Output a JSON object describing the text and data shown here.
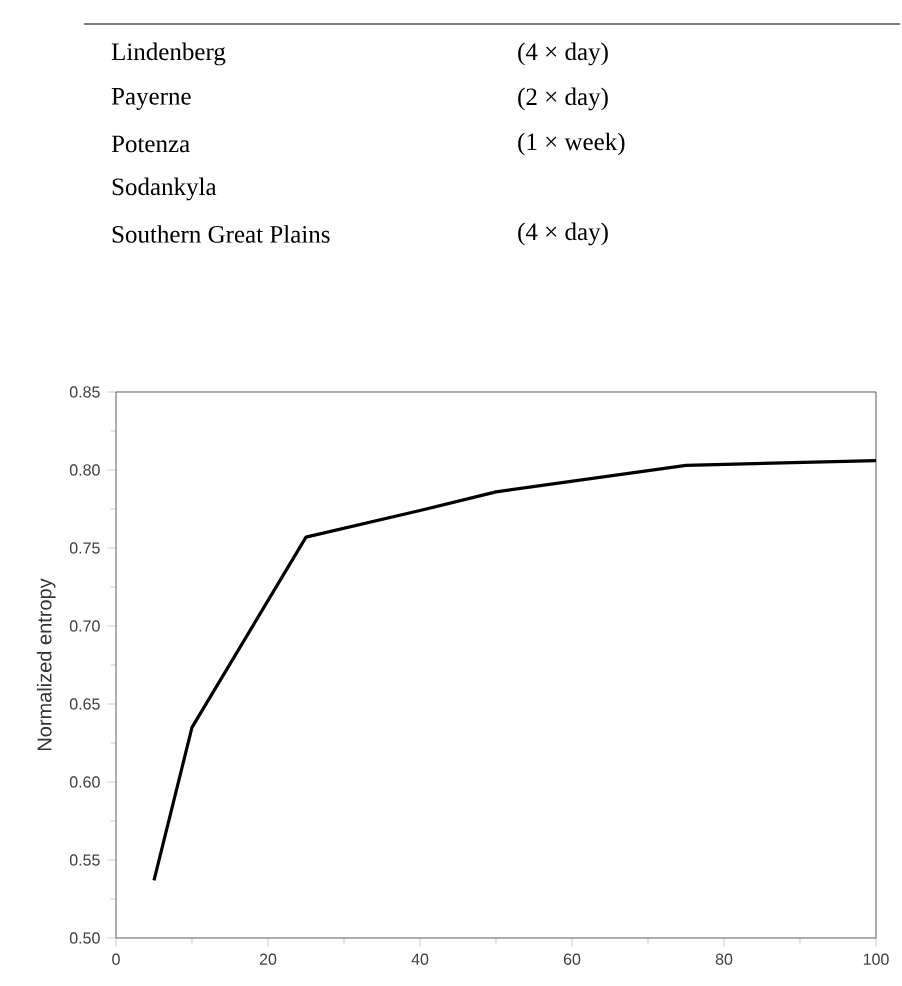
{
  "chart_data": [
    {
      "type": "other",
      "categories": [
        "Lindenberg",
        "Payerne",
        "Potenza",
        "Sodankyla",
        "Southern Great Plains"
      ],
      "annotations": [
        "(4 × day)",
        "(2 × day)",
        "(1 × week)",
        "(4 × day)"
      ]
    },
    {
      "type": "line",
      "ylabel": "Normalized entropy",
      "color": "#000000",
      "marker": "none",
      "line_style": "solid",
      "x": [
        5,
        10,
        25,
        40,
        50,
        75,
        100
      ],
      "values": [
        0.537,
        0.635,
        0.757,
        0.774,
        0.786,
        0.803,
        0.806
      ],
      "xlim": [
        0,
        100
      ],
      "xticks": [
        0,
        20,
        40,
        60,
        80,
        100
      ],
      "ylim": [
        0.5,
        0.85
      ],
      "yticks": [
        {
          "value": 0.5,
          "label": "0.50"
        },
        0.55,
        {
          "value": 0.6,
          "label": "0.60"
        },
        0.65,
        {
          "value": 0.7,
          "label": "0.70"
        },
        0.75,
        {
          "value": 0.8,
          "label": "0.80"
        },
        0.85
      ]
    }
  ]
}
